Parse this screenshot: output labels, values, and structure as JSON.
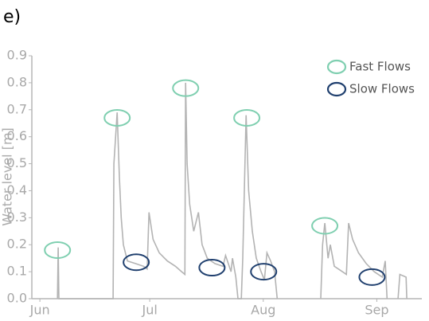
{
  "chart_data": {
    "type": "line",
    "panel_label": "e)",
    "y_label": "Water level [m]",
    "xlim": [
      -2.2,
      104.3
    ],
    "xticks": [
      {
        "value": 0,
        "label": "Jun"
      },
      {
        "value": 30,
        "label": "Jul"
      },
      {
        "value": 61,
        "label": "Aug"
      },
      {
        "value": 92,
        "label": "Sep"
      }
    ],
    "ylim": [
      0,
      0.9
    ],
    "yticks": [
      {
        "value": 0,
        "label": "0.0"
      },
      {
        "value": 0.1,
        "label": "0.1"
      },
      {
        "value": 0.2,
        "label": "0.2"
      },
      {
        "value": 0.3,
        "label": "0.3"
      },
      {
        "value": 0.4,
        "label": "0.4"
      },
      {
        "value": 0.5,
        "label": "0.5"
      },
      {
        "value": 0.6,
        "label": "0.6"
      },
      {
        "value": 0.7,
        "label": "0.7"
      },
      {
        "value": 0.8,
        "label": "0.8"
      },
      {
        "value": 0.9,
        "label": "0.9"
      }
    ],
    "grid": false,
    "legend": "upper right",
    "series": [
      {
        "color": "#b3b3b3",
        "x": [
          4.8,
          5.0,
          5.2,
          20.0,
          20.2,
          21.1,
          21.7,
          22.2,
          22.8,
          23.9,
          26.1,
          28.3,
          29.3,
          29.8,
          30.9,
          32.6,
          34.8,
          37.0,
          38.7,
          39.6,
          39.8,
          40.2,
          40.9,
          42.0,
          43.3,
          44.3,
          45.7,
          47.8,
          50.0,
          50.7,
          52.2,
          52.6,
          53.5,
          54.1,
          55.0,
          55.4,
          56.3,
          57.0,
          58.0,
          59.1,
          60.4,
          61.3,
          62.0,
          63.0,
          64.1,
          64.8,
          70.0,
          76.7,
          77.2,
          77.8,
          78.7,
          79.3,
          80.4,
          82.6,
          83.7,
          84.3,
          85.4,
          87.0,
          89.1,
          91.3,
          93.5,
          94.3,
          94.8,
          96.0,
          97.8,
          98.3,
          100.0,
          100.2
        ],
        "values": [
          0,
          0.19,
          0,
          0,
          0.5,
          0.69,
          0.45,
          0.3,
          0.2,
          0.14,
          0.13,
          0.12,
          0.11,
          0.32,
          0.22,
          0.17,
          0.14,
          0.12,
          0.1,
          0.09,
          0.8,
          0.5,
          0.35,
          0.25,
          0.32,
          0.2,
          0.15,
          0.13,
          0.12,
          0.16,
          0.1,
          0.15,
          0.08,
          0,
          0,
          0.15,
          0.68,
          0.4,
          0.25,
          0.15,
          0.1,
          0.07,
          0.17,
          0.14,
          0.1,
          0,
          null,
          0,
          0.2,
          0.28,
          0.15,
          0.2,
          0.12,
          0.1,
          0.09,
          0.28,
          0.22,
          0.17,
          0.13,
          0.1,
          0.08,
          0.14,
          0,
          null,
          0,
          0.09,
          0.08,
          0
        ]
      }
    ],
    "markers": [
      {
        "name": "Fast Flows",
        "color": "#7fcfb0",
        "x": [
          4.8,
          21.1,
          39.8,
          56.5,
          77.8
        ],
        "y": [
          0.18,
          0.67,
          0.78,
          0.67,
          0.27
        ]
      },
      {
        "name": "Slow Flows",
        "color": "#1f3f6e",
        "x": [
          26.3,
          47.0,
          61.1,
          90.7
        ],
        "y": [
          0.135,
          0.115,
          0.1,
          0.08
        ]
      }
    ]
  }
}
